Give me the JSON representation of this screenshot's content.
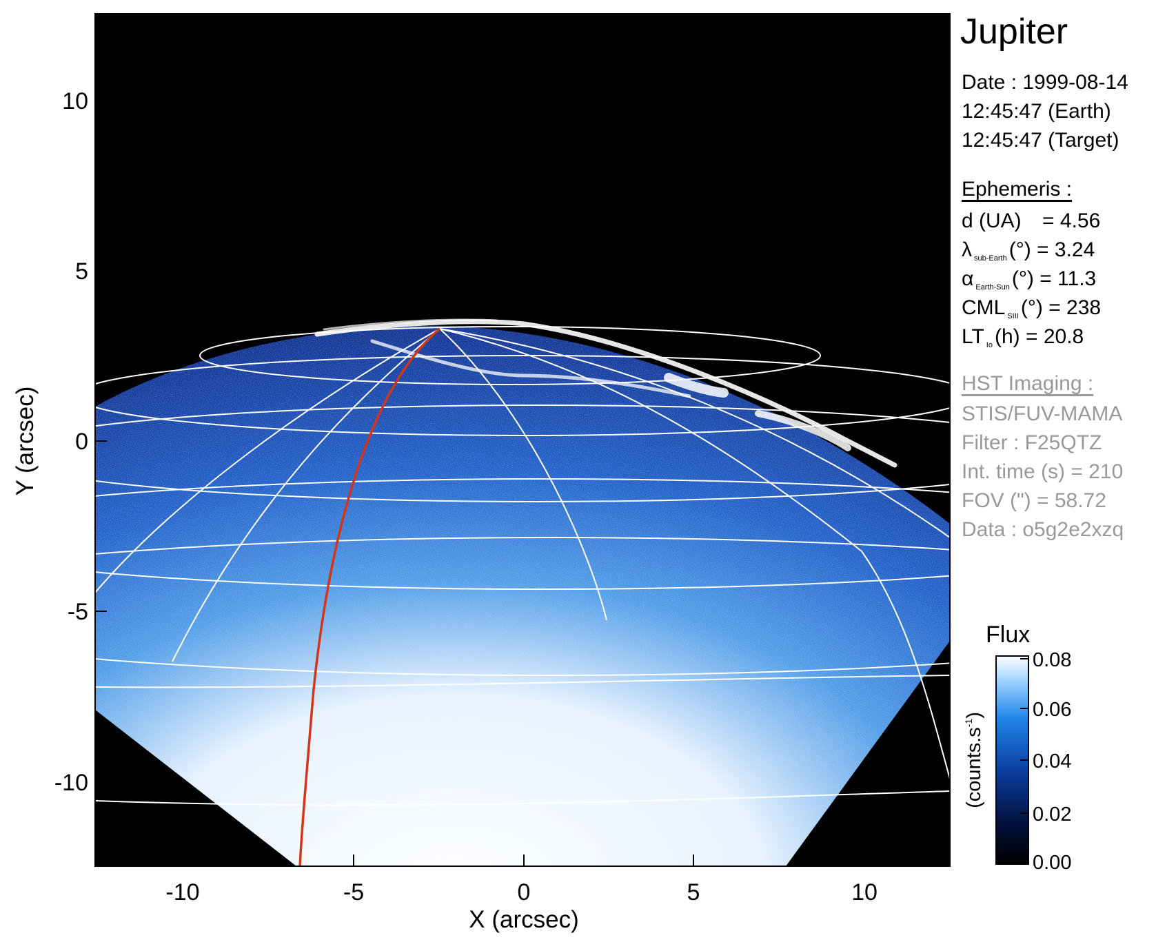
{
  "title": "Jupiter",
  "date_lines": [
    "Date : 1999-08-14",
    "12:45:47 (Earth)",
    "12:45:47 (Target)"
  ],
  "ephemeris": {
    "header": "Ephemeris :",
    "d": {
      "label": "d (UA)",
      "value": "= 4.56"
    },
    "lambda": {
      "symbol": "λ",
      "sub": "sub-Earth",
      "unit": "(°)",
      "value": "= 3.24"
    },
    "alpha": {
      "symbol": "α",
      "sub": "Earth-Sun",
      "unit": "(°)",
      "value": "= 11.3"
    },
    "cml": {
      "symbol": "CML",
      "sub": "SIII",
      "unit": "(°)",
      "value": "= 238"
    },
    "lt": {
      "symbol": "LT",
      "sub": "Io",
      "unit": "(h)",
      "value": "= 20.8"
    }
  },
  "hst": {
    "header": "HST Imaging :",
    "instrument": "STIS/FUV-MAMA",
    "filter": "Filter : F25QTZ",
    "int_time": "Int. time (s) = 210",
    "fov": "FOV (\") = 58.72",
    "data": "Data : o5g2e2xzq"
  },
  "axes": {
    "xlabel": "X (arcsec)",
    "ylabel": "Y (arcsec)",
    "x_ticks": [
      "-10",
      "-5",
      "0",
      "5",
      "10"
    ],
    "y_ticks": [
      "10",
      "5",
      "0",
      "-5",
      "-10"
    ]
  },
  "colorbar": {
    "title": "Flux",
    "unit_label": "(counts.s",
    "unit_sup": "-1",
    "unit_close": ")",
    "ticks": [
      "0.08",
      "0.06",
      "0.04",
      "0.02",
      "0.00"
    ],
    "colors": [
      "#000000",
      "#02123f",
      "#0a3fa0",
      "#1f86e8",
      "#9ed2ff",
      "#ffffff"
    ]
  },
  "colors": {
    "sky": "#000000",
    "disk_dark": "#0a2d8f",
    "disk_bright": "#ffffff",
    "grid": "#ffffff",
    "red_meridian": "#d2361a"
  }
}
